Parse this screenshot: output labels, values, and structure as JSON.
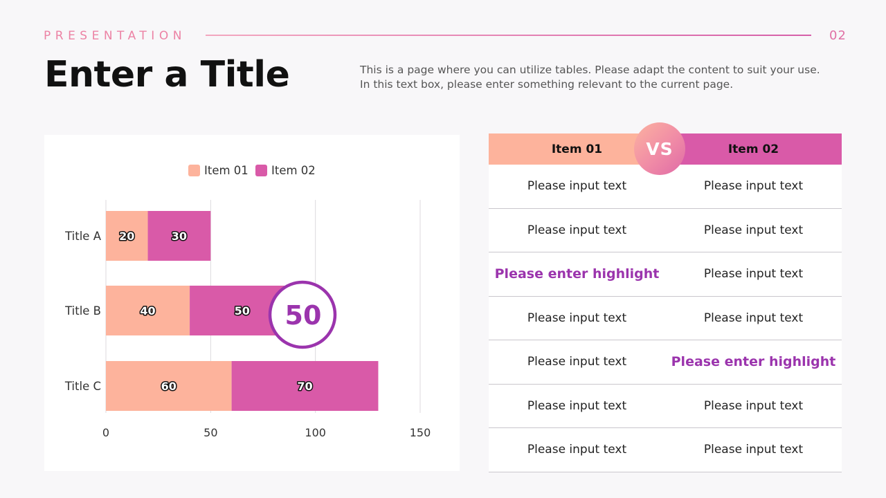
{
  "header": {
    "label": "PRESENTATION",
    "page_number": "02"
  },
  "title": "Enter a Title",
  "description": "This is a page where you can utilize tables. Please adapt the content to suit your use. In this text box, please enter something relevant to the current page.",
  "colors": {
    "item01": "#fdb39c",
    "item02": "#d95aa8",
    "accent": "#9b34ad",
    "header_pink": "#ec82a4"
  },
  "chart_data": {
    "type": "bar",
    "orientation": "horizontal",
    "stacked": true,
    "categories": [
      "Title A",
      "Title B",
      "Title C"
    ],
    "series": [
      {
        "name": "Item 01",
        "values": [
          20,
          40,
          60
        ],
        "color": "#fdb39c"
      },
      {
        "name": "Item 02",
        "values": [
          30,
          50,
          70
        ],
        "color": "#d95aa8"
      }
    ],
    "xlim": [
      0,
      150
    ],
    "xticks": [
      0,
      50,
      100,
      150
    ],
    "grid": true,
    "legend": "top-center",
    "callout": {
      "value": "50",
      "category": "Title B",
      "series": "Item 02"
    }
  },
  "table": {
    "columns": [
      "Item 01",
      "Item 02"
    ],
    "vs_label": "VS",
    "rows": [
      [
        {
          "text": "Please input text",
          "highlight": false
        },
        {
          "text": "Please input text",
          "highlight": false
        }
      ],
      [
        {
          "text": "Please input text",
          "highlight": false
        },
        {
          "text": "Please input text",
          "highlight": false
        }
      ],
      [
        {
          "text": "Please enter highlight",
          "highlight": true
        },
        {
          "text": "Please input text",
          "highlight": false
        }
      ],
      [
        {
          "text": "Please input text",
          "highlight": false
        },
        {
          "text": "Please input text",
          "highlight": false
        }
      ],
      [
        {
          "text": "Please input text",
          "highlight": false
        },
        {
          "text": "Please enter highlight",
          "highlight": true
        }
      ],
      [
        {
          "text": "Please input text",
          "highlight": false
        },
        {
          "text": "Please input text",
          "highlight": false
        }
      ],
      [
        {
          "text": "Please input text",
          "highlight": false
        },
        {
          "text": "Please input text",
          "highlight": false
        }
      ]
    ]
  }
}
